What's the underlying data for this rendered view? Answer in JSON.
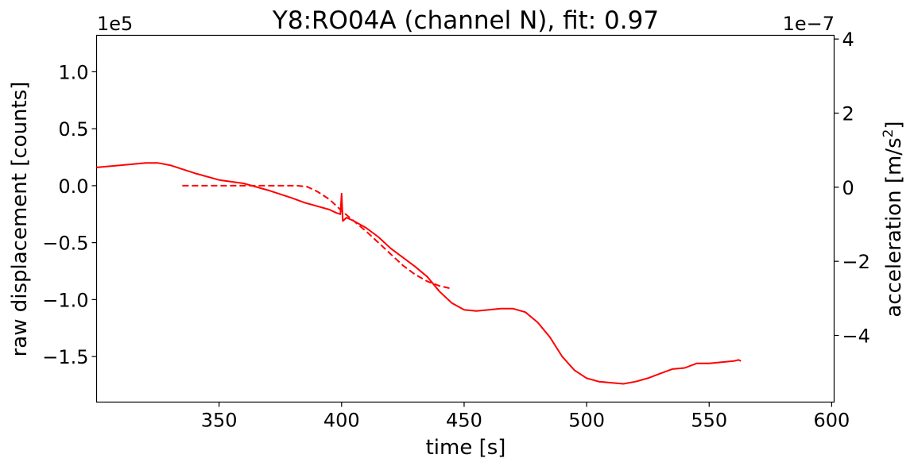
{
  "chart_data": {
    "type": "line",
    "title": "Y8:RO04A  (channel N), fit: 0.97",
    "xlabel": "time [s]",
    "ylabel_left": "raw displacement [counts]",
    "ylabel_right_main": "acceleration [m/s",
    "ylabel_right_sup": "2",
    "ylabel_right_end": "]",
    "offset_left": "1e5",
    "offset_right": "1e−7",
    "xlim": [
      300,
      601
    ],
    "ylim_left": [
      -1.9,
      1.32
    ],
    "ylim_right": [
      -5.8,
      4.1
    ],
    "x_ticks": [
      350,
      400,
      450,
      500,
      550,
      600
    ],
    "x_tick_labels": [
      "350",
      "400",
      "450",
      "500",
      "550",
      "600"
    ],
    "y_left_ticks": [
      1.0,
      0.5,
      0.0,
      -0.5,
      -1.0,
      -1.5
    ],
    "y_left_tick_labels": [
      "1.0",
      "0.5",
      "0.0",
      "−0.5",
      "−1.0",
      "−1.5"
    ],
    "y_right_ticks": [
      4,
      2,
      0,
      -2,
      -4
    ],
    "y_right_tick_labels": [
      "4",
      "2",
      "0",
      "−2",
      "−4"
    ],
    "grid": false,
    "color": "#ff0000",
    "series": [
      {
        "style": "solid",
        "axis": "left",
        "x": [
          300,
          310,
          320,
          325,
          330,
          340,
          350,
          360,
          370,
          380,
          385,
          390,
          395,
          398,
          399.5,
          400,
          400.5,
          402,
          405,
          410,
          415,
          420,
          425,
          430,
          435,
          440,
          445,
          450,
          455,
          460,
          465,
          470,
          475,
          480,
          485,
          490,
          495,
          500,
          505,
          510,
          515,
          520,
          525,
          530,
          535,
          540,
          545,
          550,
          555,
          560,
          562,
          563
        ],
        "y": [
          0.16,
          0.18,
          0.2,
          0.2,
          0.18,
          0.11,
          0.05,
          0.02,
          -0.04,
          -0.11,
          -0.15,
          -0.18,
          -0.21,
          -0.24,
          -0.25,
          -0.07,
          -0.31,
          -0.28,
          -0.31,
          -0.37,
          -0.45,
          -0.55,
          -0.63,
          -0.71,
          -0.8,
          -0.93,
          -1.03,
          -1.09,
          -1.1,
          -1.09,
          -1.08,
          -1.08,
          -1.11,
          -1.2,
          -1.33,
          -1.5,
          -1.62,
          -1.69,
          -1.72,
          -1.73,
          -1.74,
          -1.72,
          -1.69,
          -1.65,
          -1.61,
          -1.6,
          -1.56,
          -1.56,
          -1.55,
          -1.54,
          -1.53,
          -1.54
        ]
      },
      {
        "style": "dashed",
        "axis": "left",
        "x": [
          335,
          345,
          355,
          365,
          375,
          382,
          386,
          390,
          395,
          400,
          405,
          410,
          415,
          420,
          425,
          430,
          435,
          440,
          444
        ],
        "y": [
          0.0,
          0.0,
          0.0,
          0.0,
          0.0,
          0.0,
          -0.01,
          -0.05,
          -0.12,
          -0.22,
          -0.31,
          -0.4,
          -0.5,
          -0.6,
          -0.7,
          -0.78,
          -0.84,
          -0.88,
          -0.9
        ]
      }
    ]
  }
}
